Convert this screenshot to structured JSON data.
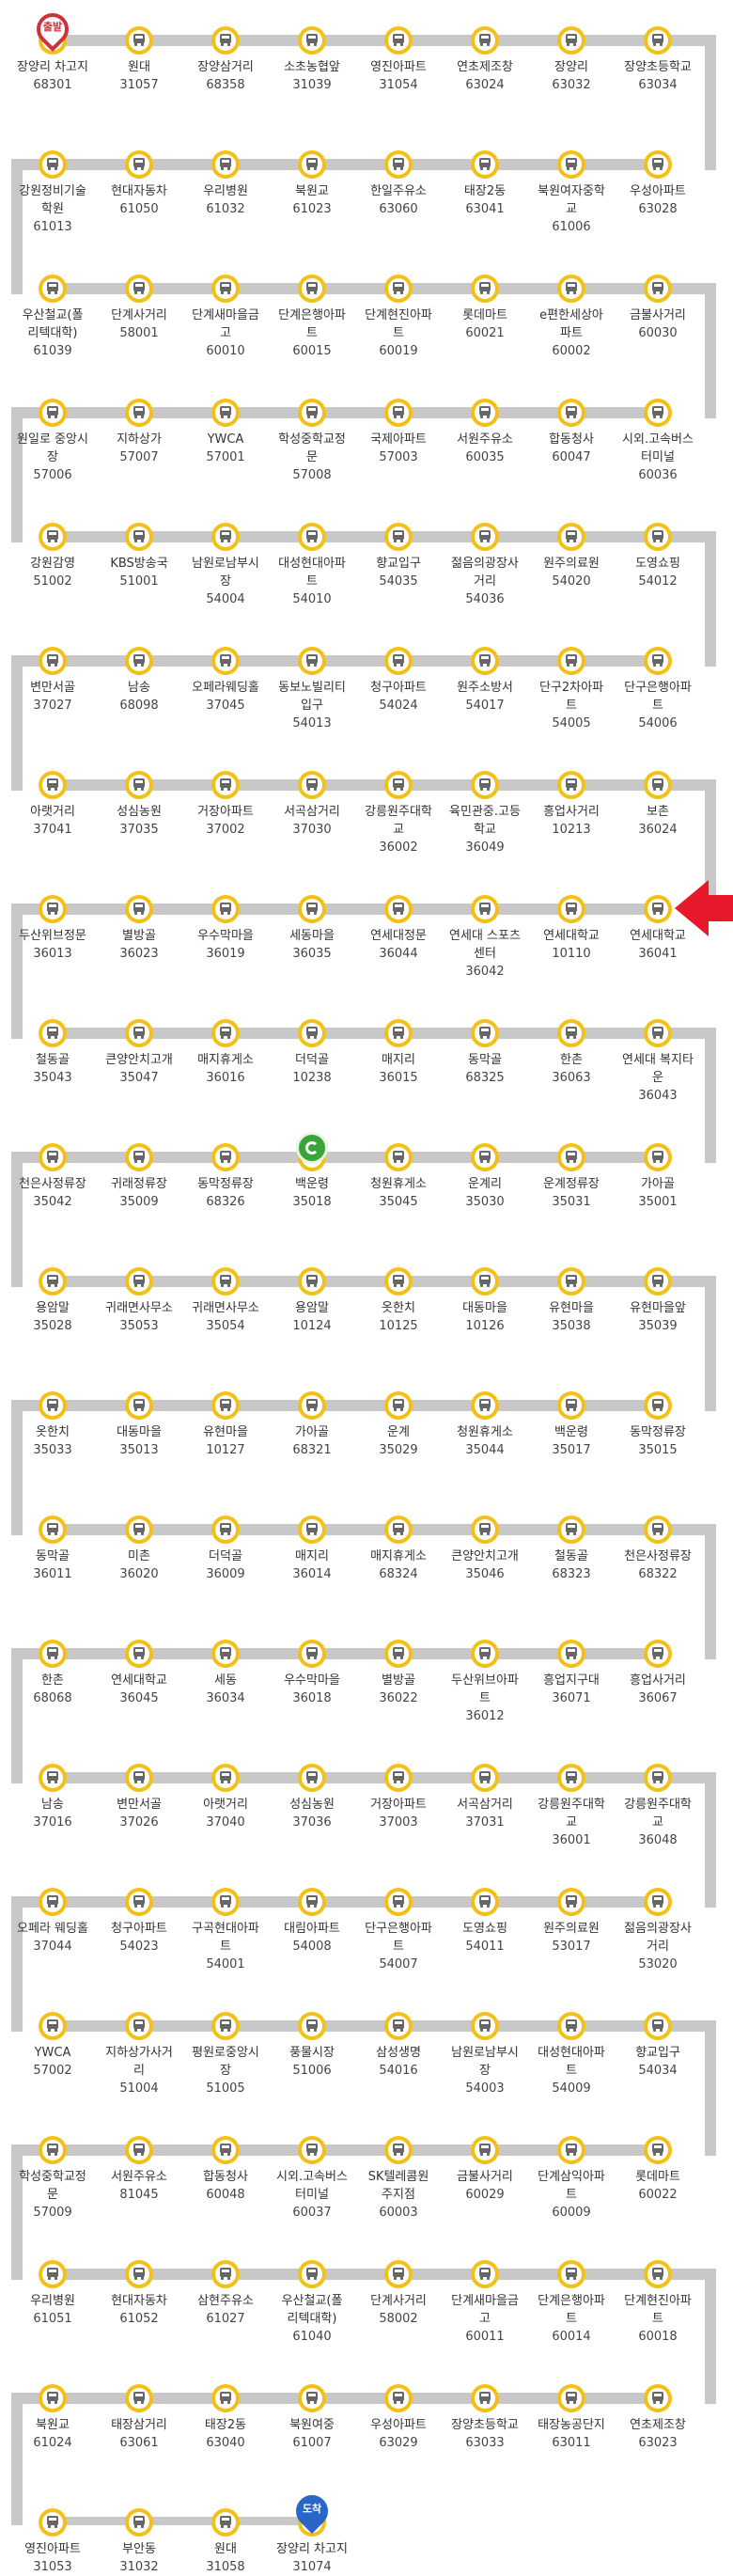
{
  "colors": {
    "route_line": "#c8c8c8",
    "stop_ring": "#f3c018",
    "current_arrow": "#e8182b",
    "start_pin": "#d0303a",
    "end_pin": "#2a66c8",
    "gps_marker": "#3aa33a"
  },
  "markers": {
    "start_label": "출발",
    "end_label": "도착",
    "current_stop_index": 56,
    "bus_position_index": 76,
    "bus_icon": "gps-bus-icon",
    "arrow_icon": "red-arrow-icon"
  },
  "stops": [
    {
      "name": "장양리 차고지",
      "id": "68301"
    },
    {
      "name": "원대",
      "id": "31057"
    },
    {
      "name": "장양삼거리",
      "id": "68358"
    },
    {
      "name": "소초농협앞",
      "id": "31039"
    },
    {
      "name": "영진아파트",
      "id": "31054"
    },
    {
      "name": "연초제조창",
      "id": "63024"
    },
    {
      "name": "장양리",
      "id": "63032"
    },
    {
      "name": "장양초등학교",
      "id": "63034"
    },
    {
      "name": "우성아파트",
      "id": "63028"
    },
    {
      "name": "북원여자중학교",
      "id": "61006"
    },
    {
      "name": "태장2동",
      "id": "63041"
    },
    {
      "name": "한일주유소",
      "id": "63060"
    },
    {
      "name": "북원교",
      "id": "61023"
    },
    {
      "name": "우리병원",
      "id": "61032"
    },
    {
      "name": "현대자동차",
      "id": "61050"
    },
    {
      "name": "강원정비기술학원",
      "id": "61013"
    },
    {
      "name": "우산철교(폴리텍대학)",
      "id": "61039"
    },
    {
      "name": "단계사거리",
      "id": "58001"
    },
    {
      "name": "단계새마을금고",
      "id": "60010"
    },
    {
      "name": "단계은행아파트",
      "id": "60015"
    },
    {
      "name": "단계현진아파트",
      "id": "60019"
    },
    {
      "name": "롯데마트",
      "id": "60021"
    },
    {
      "name": "e편한세상아파트",
      "id": "60002"
    },
    {
      "name": "금불사거리",
      "id": "60030"
    },
    {
      "name": "시외.고속버스터미널",
      "id": "60036"
    },
    {
      "name": "합동청사",
      "id": "60047"
    },
    {
      "name": "서원주유소",
      "id": "60035"
    },
    {
      "name": "국제아파트",
      "id": "57003"
    },
    {
      "name": "학성중학교정문",
      "id": "57008"
    },
    {
      "name": "YWCA",
      "id": "57001"
    },
    {
      "name": "지하상가",
      "id": "57007"
    },
    {
      "name": "원일로 중앙시장",
      "id": "57006"
    },
    {
      "name": "강원감영",
      "id": "51002"
    },
    {
      "name": "KBS방송국",
      "id": "51001"
    },
    {
      "name": "남원로남부시장",
      "id": "54004"
    },
    {
      "name": "대성현대아파트",
      "id": "54010"
    },
    {
      "name": "향교입구",
      "id": "54035"
    },
    {
      "name": "젊음의광장사거리",
      "id": "54036"
    },
    {
      "name": "원주의료원",
      "id": "54020"
    },
    {
      "name": "도영쇼핑",
      "id": "54012"
    },
    {
      "name": "단구은행아파트",
      "id": "54006"
    },
    {
      "name": "단구2차아파트",
      "id": "54005"
    },
    {
      "name": "원주소방서",
      "id": "54017"
    },
    {
      "name": "청구아파트",
      "id": "54024"
    },
    {
      "name": "동보노빌리티입구",
      "id": "54013"
    },
    {
      "name": "오페라웨딩홀",
      "id": "37045"
    },
    {
      "name": "남송",
      "id": "68098"
    },
    {
      "name": "변만서골",
      "id": "37027"
    },
    {
      "name": "아랫거리",
      "id": "37041"
    },
    {
      "name": "성심농원",
      "id": "37035"
    },
    {
      "name": "거장아파트",
      "id": "37002"
    },
    {
      "name": "서곡삼거리",
      "id": "37030"
    },
    {
      "name": "강릉원주대학교",
      "id": "36002"
    },
    {
      "name": "육민관중.고등학교",
      "id": "36049"
    },
    {
      "name": "흥업사거리",
      "id": "10213"
    },
    {
      "name": "보촌",
      "id": "36024"
    },
    {
      "name": "연세대학교",
      "id": "36041"
    },
    {
      "name": "연세대학교",
      "id": "10110"
    },
    {
      "name": "연세대 스포츠센터",
      "id": "36042"
    },
    {
      "name": "연세대정문",
      "id": "36044"
    },
    {
      "name": "세동마을",
      "id": "36035"
    },
    {
      "name": "우수막마을",
      "id": "36019"
    },
    {
      "name": "별방골",
      "id": "36023"
    },
    {
      "name": "두산위브정문",
      "id": "36013"
    },
    {
      "name": "철동골",
      "id": "35043"
    },
    {
      "name": "큰양안치고개",
      "id": "35047"
    },
    {
      "name": "매지휴게소",
      "id": "36016"
    },
    {
      "name": "더덕골",
      "id": "10238"
    },
    {
      "name": "매지리",
      "id": "36015"
    },
    {
      "name": "동막골",
      "id": "68325"
    },
    {
      "name": "한촌",
      "id": "36063"
    },
    {
      "name": "연세대 복지타운",
      "id": "36043"
    },
    {
      "name": "가아골",
      "id": "35001"
    },
    {
      "name": "운계정류장",
      "id": "35031"
    },
    {
      "name": "운계리",
      "id": "35030"
    },
    {
      "name": "청원휴게소",
      "id": "35045"
    },
    {
      "name": "백운령",
      "id": "35018"
    },
    {
      "name": "동막정류장",
      "id": "68326"
    },
    {
      "name": "귀래정류장",
      "id": "35009"
    },
    {
      "name": "천은사정류장",
      "id": "35042"
    },
    {
      "name": "용암말",
      "id": "35028"
    },
    {
      "name": "귀래면사무소",
      "id": "35053"
    },
    {
      "name": "귀래면사무소",
      "id": "35054"
    },
    {
      "name": "용암말",
      "id": "10124"
    },
    {
      "name": "옷한치",
      "id": "10125"
    },
    {
      "name": "대동마을",
      "id": "10126"
    },
    {
      "name": "유현마을",
      "id": "35038"
    },
    {
      "name": "유현마을앞",
      "id": "35039"
    },
    {
      "name": "동막정류장",
      "id": "35015"
    },
    {
      "name": "백운령",
      "id": "35017"
    },
    {
      "name": "청원휴게소",
      "id": "35044"
    },
    {
      "name": "운계",
      "id": "35029"
    },
    {
      "name": "가아골",
      "id": "68321"
    },
    {
      "name": "유현마을",
      "id": "10127"
    },
    {
      "name": "대동마을",
      "id": "35013"
    },
    {
      "name": "옷한치",
      "id": "35033"
    },
    {
      "name": "동막골",
      "id": "36011"
    },
    {
      "name": "미촌",
      "id": "36020"
    },
    {
      "name": "더덕골",
      "id": "36009"
    },
    {
      "name": "매지리",
      "id": "36014"
    },
    {
      "name": "매지휴게소",
      "id": "68324"
    },
    {
      "name": "큰양안치고개",
      "id": "35046"
    },
    {
      "name": "철동골",
      "id": "68323"
    },
    {
      "name": "천은사정류장",
      "id": "68322"
    },
    {
      "name": "흥업사거리",
      "id": "36067"
    },
    {
      "name": "흥업지구대",
      "id": "36071"
    },
    {
      "name": "두산위브아파트",
      "id": "36012"
    },
    {
      "name": "별방골",
      "id": "36022"
    },
    {
      "name": "우수막마을",
      "id": "36018"
    },
    {
      "name": "세동",
      "id": "36034"
    },
    {
      "name": "연세대학교",
      "id": "36045"
    },
    {
      "name": "한촌",
      "id": "68068"
    },
    {
      "name": "남송",
      "id": "37016"
    },
    {
      "name": "변만서골",
      "id": "37026"
    },
    {
      "name": "아랫거리",
      "id": "37040"
    },
    {
      "name": "성심농원",
      "id": "37036"
    },
    {
      "name": "거장아파트",
      "id": "37003"
    },
    {
      "name": "서곡삼거리",
      "id": "37031"
    },
    {
      "name": "강릉원주대학교",
      "id": "36001"
    },
    {
      "name": "강릉원주대학교",
      "id": "36048"
    },
    {
      "name": "젊음의광장사거리",
      "id": "53020"
    },
    {
      "name": "원주의료원",
      "id": "53017"
    },
    {
      "name": "도영쇼핑",
      "id": "54011"
    },
    {
      "name": "단구은행아파트",
      "id": "54007"
    },
    {
      "name": "대림아파트",
      "id": "54008"
    },
    {
      "name": "구곡현대아파트",
      "id": "54001"
    },
    {
      "name": "청구아파트",
      "id": "54023"
    },
    {
      "name": "오페라 웨딩홀",
      "id": "37044"
    },
    {
      "name": "YWCA",
      "id": "57002"
    },
    {
      "name": "지하상가사거리",
      "id": "51004"
    },
    {
      "name": "평원로중앙시장",
      "id": "51005"
    },
    {
      "name": "풍물시장",
      "id": "51006"
    },
    {
      "name": "삼성생명",
      "id": "54016"
    },
    {
      "name": "남원로남부시장",
      "id": "54003"
    },
    {
      "name": "대성현대아파트",
      "id": "54009"
    },
    {
      "name": "향교입구",
      "id": "54034"
    },
    {
      "name": "롯데마트",
      "id": "60022"
    },
    {
      "name": "단계삼익아파트",
      "id": "60009"
    },
    {
      "name": "금불사거리",
      "id": "60029"
    },
    {
      "name": "SK텔레콤원주지점",
      "id": "60003"
    },
    {
      "name": "시외.고속버스터미널",
      "id": "60037"
    },
    {
      "name": "합동청사",
      "id": "60048"
    },
    {
      "name": "서원주유소",
      "id": "81045"
    },
    {
      "name": "학성중학교정문",
      "id": "57009"
    },
    {
      "name": "우리병원",
      "id": "61051"
    },
    {
      "name": "현대자동차",
      "id": "61052"
    },
    {
      "name": "삼현주유소",
      "id": "61027"
    },
    {
      "name": "우산철교(폴리텍대학)",
      "id": "61040"
    },
    {
      "name": "단계사거리",
      "id": "58002"
    },
    {
      "name": "단계새마을금고",
      "id": "60011"
    },
    {
      "name": "단계은행아파트",
      "id": "60014"
    },
    {
      "name": "단계현진아파트",
      "id": "60018"
    },
    {
      "name": "연초제조창",
      "id": "63023"
    },
    {
      "name": "태장농공단지",
      "id": "63011"
    },
    {
      "name": "장양초등학교",
      "id": "63033"
    },
    {
      "name": "우성아파트",
      "id": "63029"
    },
    {
      "name": "북원여중",
      "id": "61007"
    },
    {
      "name": "태장2동",
      "id": "63040"
    },
    {
      "name": "태장삼거리",
      "id": "63061"
    },
    {
      "name": "북원교",
      "id": "61024"
    },
    {
      "name": "영진아파트",
      "id": "31053"
    },
    {
      "name": "부안동",
      "id": "31032"
    },
    {
      "name": "원대",
      "id": "31058"
    },
    {
      "name": "장양리 차고지",
      "id": "31074"
    }
  ]
}
